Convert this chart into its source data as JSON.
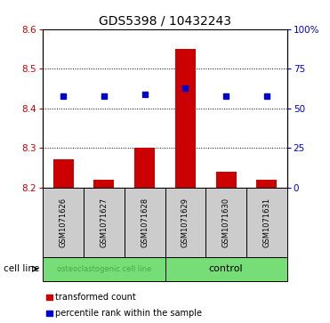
{
  "title": "GDS5398 / 10432243",
  "samples": [
    "GSM1071626",
    "GSM1071627",
    "GSM1071628",
    "GSM1071629",
    "GSM1071630",
    "GSM1071631"
  ],
  "bar_values": [
    8.27,
    8.22,
    8.3,
    8.55,
    8.24,
    8.22
  ],
  "bar_base": 8.2,
  "blue_values": [
    8.43,
    8.43,
    8.435,
    8.45,
    8.43,
    8.43
  ],
  "bar_color": "#cc0000",
  "blue_color": "#0000cc",
  "ylim_left": [
    8.2,
    8.6
  ],
  "ylim_right": [
    0,
    100
  ],
  "yticks_left": [
    8.2,
    8.3,
    8.4,
    8.5,
    8.6
  ],
  "yticks_right": [
    0,
    25,
    50,
    75,
    100
  ],
  "ytick_labels_right": [
    "0",
    "25",
    "50",
    "75",
    "100%"
  ],
  "group1_label": "osteoclastogenic cell line",
  "group2_label": "control",
  "group_label_color": "#44aa44",
  "group_bg_color": "#77dd77",
  "sample_bg_color": "#cccccc",
  "cell_line_label": "cell line",
  "legend_red_label": "transformed count",
  "legend_blue_label": "percentile rank within the sample",
  "bar_width": 0.5,
  "title_fontsize": 10,
  "tick_fontsize": 7.5,
  "label_fontsize": 7
}
